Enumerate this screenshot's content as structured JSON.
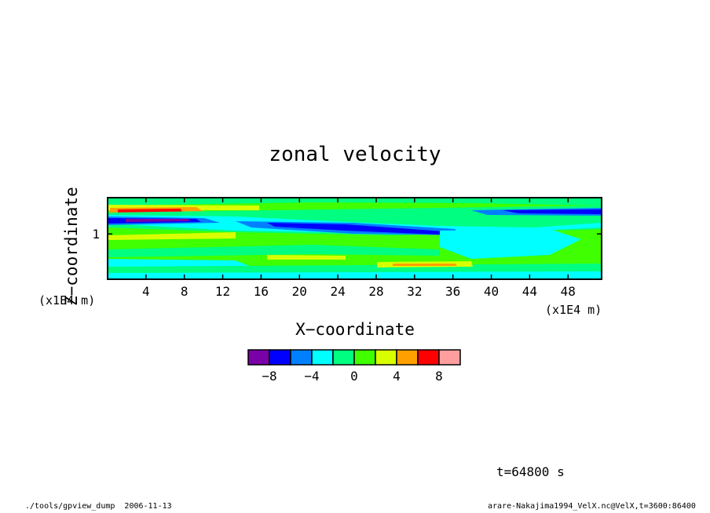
{
  "chart_data": {
    "type": "heatmap",
    "title": "zonal velocity",
    "xlabel": "X−coordinate",
    "ylabel": "Z−coordinate",
    "x_unit": "(x1E4 m)",
    "y_unit": "(x1E4 m)",
    "xlim": [
      0,
      51.5
    ],
    "ylim": [
      0.5,
      1.4
    ],
    "x_ticks": [
      4,
      8,
      12,
      16,
      20,
      24,
      28,
      32,
      36,
      40,
      44,
      48
    ],
    "y_ticks": [
      1
    ],
    "colorbar": {
      "levels": [
        -10,
        -8,
        -6,
        -4,
        -2,
        0,
        2,
        4,
        6,
        8,
        10
      ],
      "tick_labels": [
        "−8",
        "−4",
        "0",
        "4",
        "8"
      ],
      "tick_values": [
        -8,
        -4,
        0,
        4,
        8
      ],
      "colors": [
        "#7a00a8",
        "#0000ff",
        "#0080ff",
        "#00ffff",
        "#00ff80",
        "#40ff00",
        "#d8ff00",
        "#ffa000",
        "#ff0000",
        "#ff9e9e"
      ]
    },
    "annotation": "t=64800 s"
  },
  "footer": {
    "left": "./tools/gpview_dump  2006-11-13",
    "right": "arare-Nakajima1994_VelX.nc@VelX,t=3600:86400"
  }
}
